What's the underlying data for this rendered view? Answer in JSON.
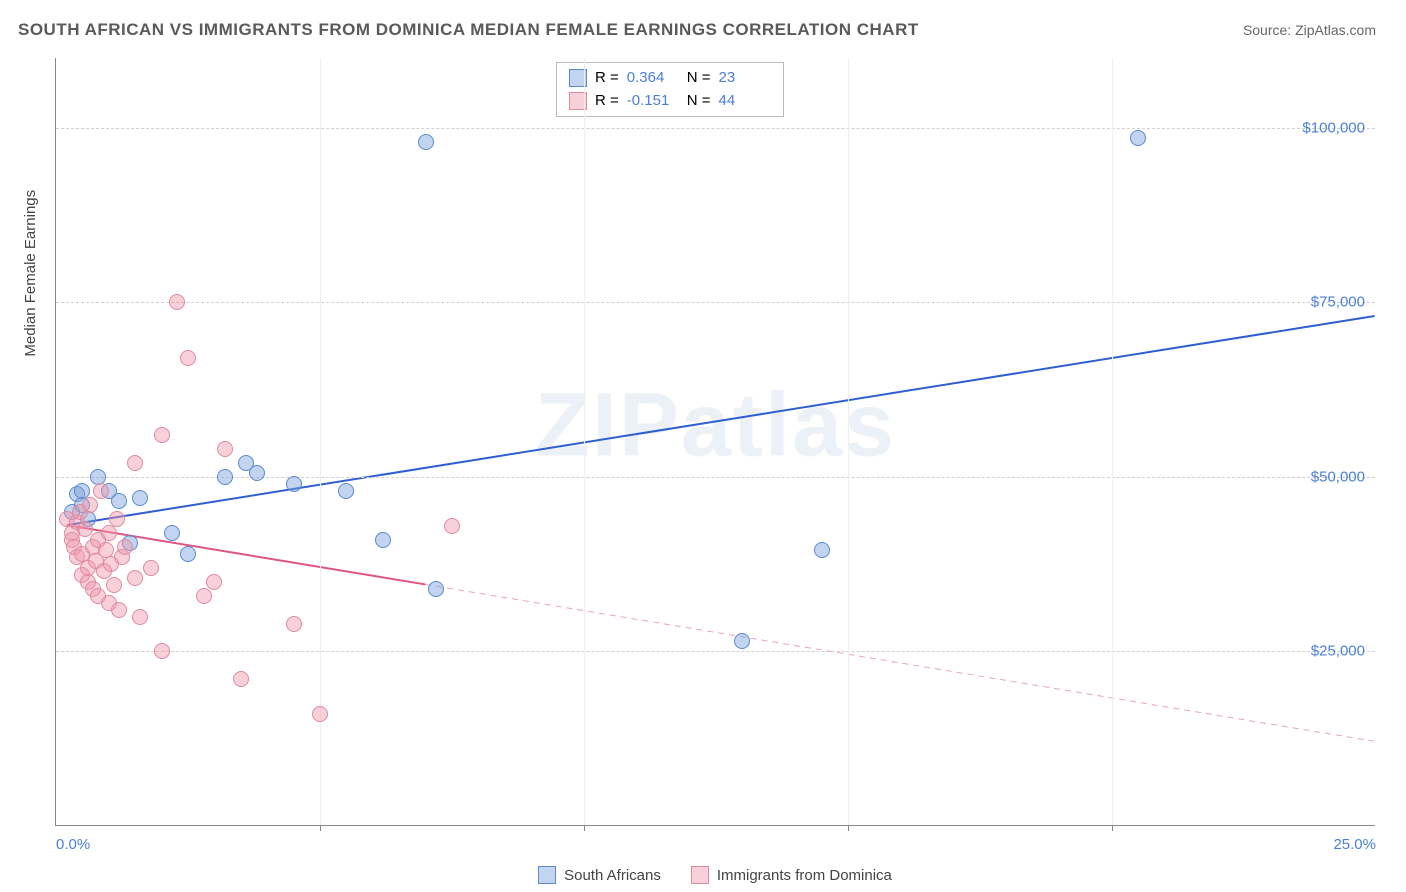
{
  "title": "SOUTH AFRICAN VS IMMIGRANTS FROM DOMINICA MEDIAN FEMALE EARNINGS CORRELATION CHART",
  "source_label": "Source: ZipAtlas.com",
  "watermark": "ZIPatlas",
  "yaxis_label": "Median Female Earnings",
  "chart": {
    "type": "scatter",
    "xlim": [
      0,
      25
    ],
    "ylim": [
      0,
      110000
    ],
    "x_tick_positions": [
      0,
      5,
      10,
      15,
      20,
      25
    ],
    "x_tick_labels": {
      "0": "0.0%",
      "25": "25.0%"
    },
    "y_ticks": [
      25000,
      50000,
      75000,
      100000
    ],
    "y_tick_labels": [
      "$25,000",
      "$50,000",
      "$75,000",
      "$100,000"
    ],
    "background_color": "#ffffff",
    "grid_color": "#d0d0d0",
    "point_radius": 8,
    "series": [
      {
        "key": "south_africans",
        "label": "South Africans",
        "fill": "rgba(120,160,220,0.45)",
        "stroke": "#5a8ad0",
        "r_label": "R =",
        "r_value": "0.364",
        "n_label": "N =",
        "n_value": "23",
        "trend": {
          "x1": 0.2,
          "y1": 43000,
          "x2": 25,
          "y2": 73000,
          "color": "#2e5fd0",
          "width": 2,
          "dash": ""
        },
        "points": [
          [
            0.3,
            45000
          ],
          [
            0.4,
            47500
          ],
          [
            0.5,
            48000
          ],
          [
            0.5,
            46000
          ],
          [
            0.6,
            44000
          ],
          [
            0.8,
            50000
          ],
          [
            1.0,
            48000
          ],
          [
            1.2,
            46500
          ],
          [
            1.4,
            40500
          ],
          [
            1.6,
            47000
          ],
          [
            2.2,
            42000
          ],
          [
            2.5,
            39000
          ],
          [
            3.2,
            50000
          ],
          [
            3.6,
            52000
          ],
          [
            3.8,
            50500
          ],
          [
            4.5,
            49000
          ],
          [
            5.5,
            48000
          ],
          [
            6.2,
            41000
          ],
          [
            7.2,
            34000
          ],
          [
            7.0,
            98000
          ],
          [
            13.0,
            26500
          ],
          [
            14.5,
            39500
          ],
          [
            20.5,
            98500
          ]
        ]
      },
      {
        "key": "immigrants_dominica",
        "label": "Immigrants from Dominica",
        "fill": "rgba(240,150,170,0.45)",
        "stroke": "#e08aa0",
        "r_label": "R =",
        "r_value": "-0.151",
        "n_label": "N =",
        "n_value": "44",
        "trend": {
          "x1": 0.2,
          "y1": 43000,
          "x2": 7,
          "y2": 34500,
          "color": "#e05580",
          "width": 2,
          "dash": ""
        },
        "trend_ext": {
          "x1": 7,
          "y1": 34500,
          "x2": 25,
          "y2": 12000,
          "color": "#e8a5b8",
          "width": 1,
          "dash": "6,5"
        },
        "points": [
          [
            0.2,
            44000
          ],
          [
            0.3,
            42000
          ],
          [
            0.3,
            41000
          ],
          [
            0.35,
            40000
          ],
          [
            0.4,
            43500
          ],
          [
            0.4,
            38500
          ],
          [
            0.45,
            45000
          ],
          [
            0.5,
            36000
          ],
          [
            0.5,
            39000
          ],
          [
            0.55,
            42500
          ],
          [
            0.6,
            37000
          ],
          [
            0.6,
            35000
          ],
          [
            0.65,
            46000
          ],
          [
            0.7,
            34000
          ],
          [
            0.7,
            40000
          ],
          [
            0.75,
            38000
          ],
          [
            0.8,
            33000
          ],
          [
            0.8,
            41000
          ],
          [
            0.85,
            48000
          ],
          [
            0.9,
            36500
          ],
          [
            0.95,
            39500
          ],
          [
            1.0,
            32000
          ],
          [
            1.0,
            42000
          ],
          [
            1.05,
            37500
          ],
          [
            1.1,
            34500
          ],
          [
            1.15,
            44000
          ],
          [
            1.2,
            31000
          ],
          [
            1.25,
            38500
          ],
          [
            1.3,
            40000
          ],
          [
            1.5,
            35500
          ],
          [
            1.6,
            30000
          ],
          [
            1.8,
            37000
          ],
          [
            2.0,
            25000
          ],
          [
            2.0,
            56000
          ],
          [
            2.3,
            75000
          ],
          [
            2.5,
            67000
          ],
          [
            2.8,
            33000
          ],
          [
            3.0,
            35000
          ],
          [
            3.2,
            54000
          ],
          [
            3.5,
            21000
          ],
          [
            4.5,
            29000
          ],
          [
            5.0,
            16000
          ],
          [
            7.5,
            43000
          ],
          [
            1.5,
            52000
          ]
        ]
      }
    ]
  },
  "stats_labels": {
    "r": "R =",
    "n": "N ="
  }
}
